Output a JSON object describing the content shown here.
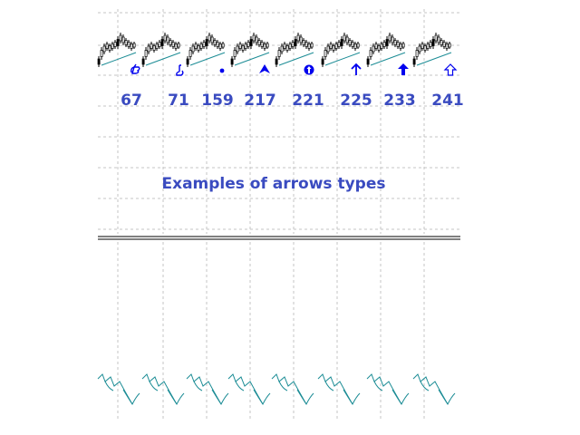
{
  "caption": "Examples of arrows types",
  "arrow_codes": [
    {
      "code": "67",
      "glyph": "hand-pointing-icon"
    },
    {
      "code": "71",
      "glyph": "hand-pointing-up-icon"
    },
    {
      "code": "159",
      "glyph": "dot-icon"
    },
    {
      "code": "217",
      "glyph": "fletched-arrow-icon"
    },
    {
      "code": "221",
      "glyph": "arrow-in-circle-icon"
    },
    {
      "code": "225",
      "glyph": "thin-arrow-up-icon"
    },
    {
      "code": "233",
      "glyph": "bold-arrow-up-icon"
    },
    {
      "code": "241",
      "glyph": "outline-arrow-up-icon"
    }
  ],
  "colors": {
    "label": "#3a4bc0",
    "arrow": "#0000ee",
    "grid": "#c4c4c4",
    "trend": "#1b8c95",
    "candle": "#000000",
    "separator": "#000000"
  }
}
